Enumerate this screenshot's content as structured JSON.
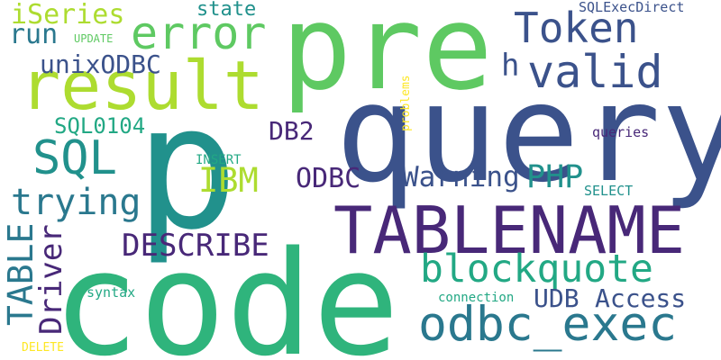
{
  "colors": {
    "background": "#ffffff",
    "palette": [
      "#440154",
      "#3b528b",
      "#21918c",
      "#5ec962",
      "#fde725"
    ]
  },
  "words": {
    "query": "query",
    "pre": "pre",
    "p": "p",
    "code": "code",
    "tablename": "TABLENAME",
    "result": "result",
    "odbc_exec": "odbc_exec",
    "blockquote": "blockquote",
    "valid": "valid",
    "token": "Token",
    "error": "error",
    "sql": "SQL",
    "trying": "trying",
    "describe": "DESCRIBE",
    "warning": "Warning",
    "php": "PHP",
    "ibm": "IBM",
    "odbc": "ODBC",
    "db2": "DB2",
    "udb": "UDB",
    "access": "Access",
    "table": "TABLE",
    "driver": "Driver",
    "iseries": "iSeries",
    "run": "run",
    "unixodbc": "unixODBC",
    "sql0104": "SQL0104",
    "h": "h",
    "state": "state",
    "sqlexecdirect": "SQLExecDirect",
    "update": "UPDATE",
    "problems": "problems",
    "queries": "queries",
    "select": "SELECT",
    "insert": "INSERT",
    "syntax": "syntax",
    "connection": "connection",
    "delete": "DELETE"
  }
}
